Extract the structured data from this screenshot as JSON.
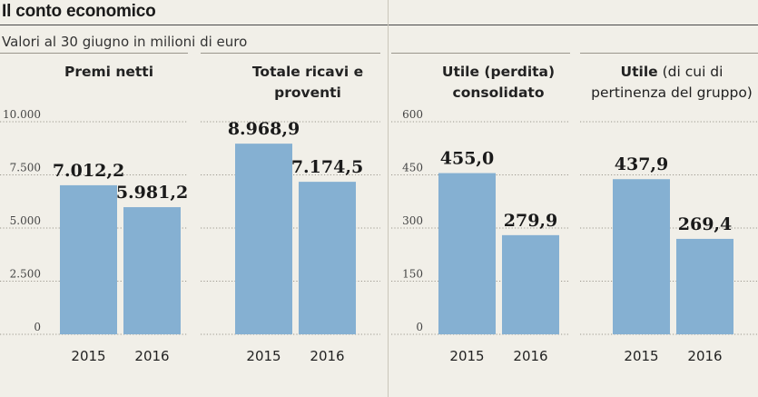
{
  "title": "Il conto economico",
  "subtitle": "Valori al 30 giugno in milioni di euro",
  "colors": {
    "bar": "#85b0d2",
    "background": "#f1efe8"
  },
  "chart_data": [
    {
      "type": "bar",
      "title_bold": "Premi netti",
      "title_light": "",
      "categories": [
        "2015",
        "2016"
      ],
      "values": [
        7012.2,
        5981.2
      ],
      "value_labels": [
        "7.012,2",
        "5.981,2"
      ],
      "ylim": [
        0,
        10000
      ],
      "yticks": [
        0,
        2500,
        5000,
        7500,
        10000
      ],
      "ytick_labels": [
        "0",
        "2.500",
        "5.000",
        "7.500",
        "10.000"
      ],
      "grid": true
    },
    {
      "type": "bar",
      "title_bold": "Totale ricavi e proventi",
      "title_light": "",
      "categories": [
        "2015",
        "2016"
      ],
      "values": [
        8968.9,
        7174.5
      ],
      "value_labels": [
        "8.968,9",
        "7.174,5"
      ],
      "ylim": [
        0,
        10000
      ],
      "yticks": [
        0,
        2500,
        5000,
        7500,
        10000
      ],
      "ytick_labels": [
        "",
        "",
        "",
        "",
        ""
      ],
      "grid": true
    },
    {
      "type": "bar",
      "title_bold": "Utile (perdita) consolidato",
      "title_light": "",
      "categories": [
        "2015",
        "2016"
      ],
      "values": [
        455.0,
        279.9
      ],
      "value_labels": [
        "455,0",
        "279,9"
      ],
      "ylim": [
        0,
        600
      ],
      "yticks": [
        0,
        150,
        300,
        450,
        600
      ],
      "ytick_labels": [
        "0",
        "150",
        "300",
        "450",
        "600"
      ],
      "grid": true
    },
    {
      "type": "bar",
      "title_bold": "Utile",
      "title_light": "(di cui di pertinenza del gruppo)",
      "categories": [
        "2015",
        "2016"
      ],
      "values": [
        437.9,
        269.4
      ],
      "value_labels": [
        "437,9",
        "269,4"
      ],
      "ylim": [
        0,
        600
      ],
      "yticks": [
        0,
        150,
        300,
        450,
        600
      ],
      "ytick_labels": [
        "",
        "",
        "",
        "",
        ""
      ],
      "grid": true
    }
  ]
}
